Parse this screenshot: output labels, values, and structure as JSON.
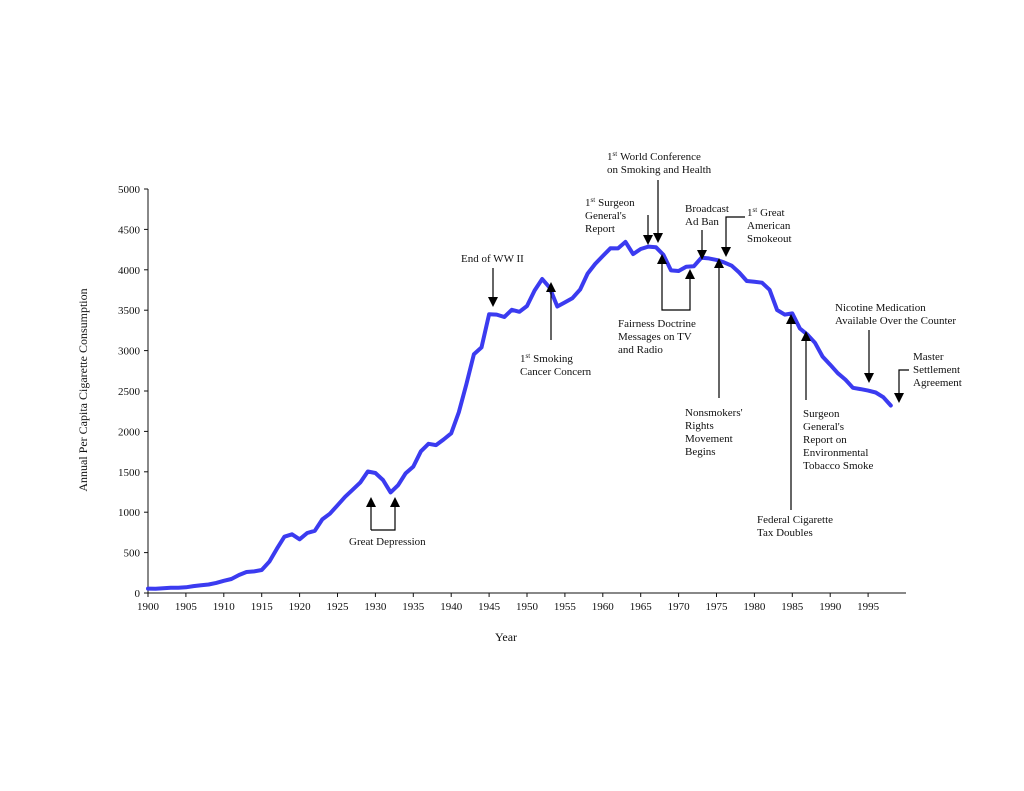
{
  "chart_data": {
    "type": "line",
    "title": "",
    "xlabel": "Year",
    "ylabel": "Annual Per Capita Cigarette Consumption",
    "xlim": [
      1900,
      2000
    ],
    "ylim": [
      0,
      5000
    ],
    "xticks": [
      "1900",
      "1905",
      "1910",
      "1915",
      "1920",
      "1925",
      "1930",
      "1935",
      "1940",
      "1945",
      "1950",
      "1955",
      "1960",
      "1965",
      "1970",
      "1975",
      "1980",
      "1985",
      "1990",
      "1995"
    ],
    "yticks": [
      "0",
      "500",
      "1000",
      "1500",
      "2000",
      "2500",
      "3000",
      "3500",
      "4000",
      "4500",
      "5000"
    ],
    "grid": false,
    "line_color": "#3b3bf0",
    "series": [
      {
        "x": [
          1900,
          1901,
          1902,
          1903,
          1904,
          1905,
          1906,
          1907,
          1908,
          1909,
          1910,
          1911,
          1912,
          1913,
          1914,
          1915,
          1916,
          1917,
          1918,
          1919,
          1920,
          1921,
          1922,
          1923,
          1924,
          1925,
          1926,
          1927,
          1928,
          1929,
          1930,
          1931,
          1932,
          1933,
          1934,
          1935,
          1936,
          1937,
          1938,
          1939,
          1940,
          1941,
          1942,
          1943,
          1944,
          1945,
          1946,
          1947,
          1948,
          1949,
          1950,
          1951,
          1952,
          1953,
          1954,
          1955,
          1956,
          1957,
          1958,
          1959,
          1960,
          1961,
          1962,
          1963,
          1964,
          1965,
          1966,
          1967,
          1968,
          1969,
          1970,
          1971,
          1972,
          1973,
          1974,
          1975,
          1976,
          1977,
          1978,
          1979,
          1980,
          1981,
          1982,
          1983,
          1984,
          1985,
          1986,
          1987,
          1988,
          1989,
          1990,
          1991,
          1992,
          1993,
          1994,
          1995,
          1996,
          1997,
          1998
        ],
        "y": [
          54,
          53,
          60,
          64,
          66,
          70,
          86,
          95,
          105,
          125,
          151,
          173,
          223,
          260,
          267,
          285,
          387,
          548,
          697,
          727,
          665,
          742,
          770,
          911,
          982,
          1085,
          1191,
          1279,
          1366,
          1504,
          1485,
          1399,
          1245,
          1334,
          1483,
          1564,
          1754,
          1847,
          1830,
          1900,
          1976,
          2236,
          2585,
          2956,
          3039,
          3449,
          3446,
          3416,
          3505,
          3480,
          3552,
          3744,
          3886,
          3778,
          3546,
          3597,
          3650,
          3755,
          3953,
          4073,
          4171,
          4266,
          4265,
          4345,
          4194,
          4258,
          4287,
          4280,
          4186,
          3993,
          3985,
          4037,
          4043,
          4148,
          4141,
          4122,
          4092,
          4051,
          3967,
          3861,
          3851,
          3840,
          3753,
          3502,
          3446,
          3461,
          3274,
          3197,
          3096,
          2926,
          2826,
          2720,
          2641,
          2539,
          2524,
          2505,
          2482,
          2423,
          2320
        ]
      }
    ],
    "annotations": [
      {
        "id": "great-depression",
        "lines": [
          "Great Depression"
        ]
      },
      {
        "id": "end-ww2",
        "lines": [
          "End of WW II"
        ]
      },
      {
        "id": "smoking-cancer",
        "sup": "st",
        "lines": [
          "1",
          "Smoking",
          "Cancer Concern"
        ]
      },
      {
        "id": "surgeon-general-report",
        "sup": "st",
        "lines": [
          "1",
          "Surgeon",
          "General's",
          "Report"
        ]
      },
      {
        "id": "world-conference",
        "sup": "st",
        "lines": [
          "1",
          "World Conference",
          "on Smoking and Health"
        ]
      },
      {
        "id": "broadcast-ban",
        "lines": [
          "Broadcast",
          "Ad Ban"
        ]
      },
      {
        "id": "great-american-smokeout",
        "sup": "st",
        "lines": [
          "1",
          "Great",
          "American",
          "Smokeout"
        ]
      },
      {
        "id": "fairness-doctrine",
        "lines": [
          "Fairness Doctrine",
          "Messages on TV",
          "and Radio"
        ]
      },
      {
        "id": "nonsmokers-rights",
        "lines": [
          "Nonsmokers'",
          "Rights",
          "Movement",
          "Begins"
        ]
      },
      {
        "id": "federal-tax",
        "lines": [
          "Federal Cigarette",
          "Tax Doubles"
        ]
      },
      {
        "id": "surgeon-general-ets",
        "lines": [
          "Surgeon",
          "General's",
          "Report on",
          "Environmental",
          "Tobacco Smoke"
        ]
      },
      {
        "id": "nicotine-medication",
        "lines": [
          "Nicotine Medication",
          "Available Over the Counter"
        ]
      },
      {
        "id": "master-settlement",
        "lines": [
          "Master",
          "Settlement",
          "Agreement"
        ]
      }
    ]
  }
}
